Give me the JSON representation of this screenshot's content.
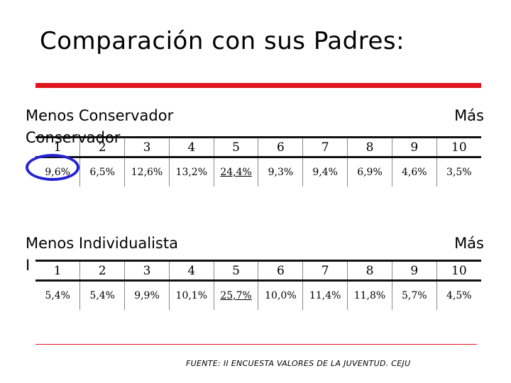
{
  "title": "Comparación con sus Padres:",
  "block1": {
    "left_label": "Menos Conservador",
    "left_label_2": "Conservador",
    "right_label": "Más",
    "scale": [
      "1",
      "2",
      "3",
      "4",
      "5",
      "6",
      "7",
      "8",
      "9",
      "10"
    ],
    "values": [
      "9,6%",
      "6,5%",
      "12,6%",
      "13,2%",
      "24,4%",
      "9,3%",
      "9,4%",
      "6,9%",
      "4,6%",
      "3,5%"
    ],
    "highlight_index": 4
  },
  "block2": {
    "left_label": "Menos Individualista",
    "left_label_2": "I",
    "right_label": "Más",
    "scale": [
      "1",
      "2",
      "3",
      "4",
      "5",
      "6",
      "7",
      "8",
      "9",
      "10"
    ],
    "values": [
      "5,4%",
      "5,4%",
      "9,9%",
      "10,1%",
      "25,7%",
      "10,0%",
      "11,4%",
      "11,8%",
      "5,7%",
      "4,5%"
    ],
    "highlight_index": 4
  },
  "source": "FUENTE: II ENCUESTA VALORES DE LA JUVENTUD. CEJU",
  "colors": {
    "accent_red": "#e0141c",
    "circle_blue": "#2323d6"
  }
}
